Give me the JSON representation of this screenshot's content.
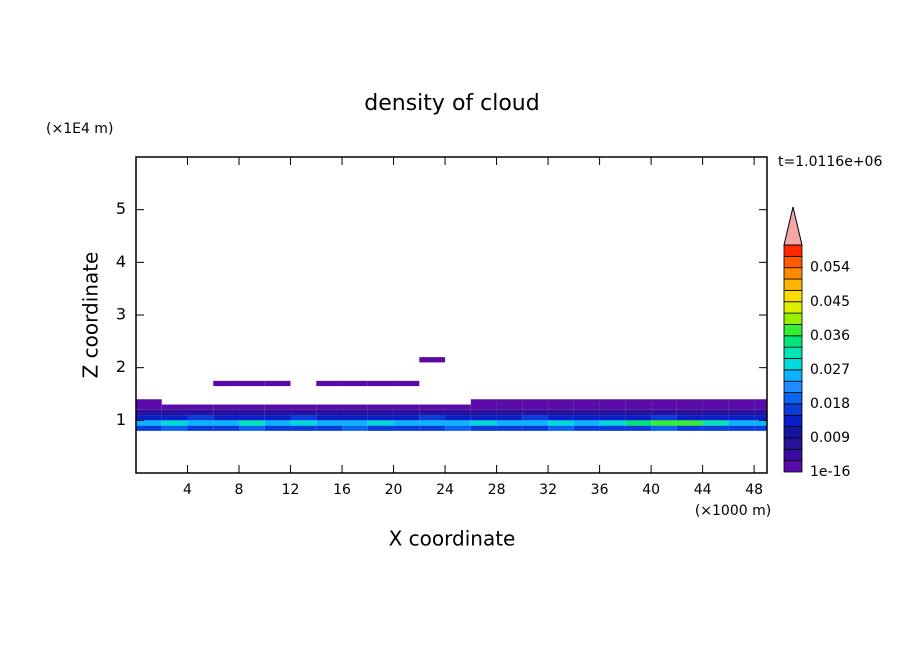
{
  "chart_data": {
    "type": "contour",
    "title": "density of cloud",
    "x_label": "X coordinate",
    "y_label": "Z coordinate",
    "x_unit": "(×1000 m)",
    "y_unit": "(×1E4 m)",
    "time_label": "t=1.0116e+06",
    "xlim": [
      0,
      49
    ],
    "ylim": [
      0,
      6
    ],
    "xticks": [
      4,
      8,
      12,
      16,
      20,
      24,
      28,
      32,
      36,
      40,
      44,
      48
    ],
    "yticks": [
      1,
      2,
      3,
      4,
      5
    ],
    "x": [
      1,
      3,
      5,
      7,
      9,
      11,
      13,
      15,
      17,
      19,
      21,
      23,
      25,
      27,
      29,
      31,
      33,
      35,
      37,
      39,
      41,
      43,
      45,
      47,
      49
    ],
    "y": [
      0.85,
      0.95,
      1.05,
      1.15,
      1.25,
      1.35,
      1.7,
      2.15
    ],
    "z": [
      [
        0.015,
        0.018,
        0.015,
        0.015,
        0.018,
        0.015,
        0.015,
        0.015,
        0.018,
        0.015,
        0.015,
        0.015,
        0.018,
        0.015,
        0.015,
        0.015,
        0.018,
        0.015,
        0.015,
        0.015,
        0.018,
        0.015,
        0.015,
        0.015,
        0.015
      ],
      [
        0.024,
        0.027,
        0.024,
        0.024,
        0.03,
        0.024,
        0.027,
        0.024,
        0.024,
        0.027,
        0.024,
        0.024,
        0.024,
        0.027,
        0.024,
        0.024,
        0.027,
        0.024,
        0.027,
        0.033,
        0.036,
        0.036,
        0.03,
        0.024,
        0.024
      ],
      [
        0.012,
        0.012,
        0.015,
        0.012,
        0.012,
        0.012,
        0.015,
        0.012,
        0.012,
        0.012,
        0.012,
        0.015,
        0.012,
        0.012,
        0.012,
        0.015,
        0.012,
        0.012,
        0.012,
        0.012,
        0.015,
        0.012,
        0.012,
        0.012,
        0.012
      ],
      [
        0.006,
        0.006,
        0.006,
        0.006,
        0.006,
        0.006,
        0.006,
        0.006,
        0.006,
        0.006,
        0.006,
        0.006,
        0.006,
        0.006,
        0.006,
        0.006,
        0.006,
        0.006,
        0.006,
        0.006,
        0.006,
        0.006,
        0.006,
        0.006,
        0.006
      ],
      [
        0.002,
        0.002,
        0.002,
        0.002,
        0.002,
        0.002,
        0.002,
        0.002,
        0.002,
        0.002,
        0.002,
        0.002,
        0.002,
        0.002,
        0.002,
        0.002,
        0.002,
        0.002,
        0.002,
        0.002,
        0.002,
        0.002,
        0.002,
        0.002,
        0.002
      ],
      [
        0.001,
        null,
        null,
        null,
        null,
        null,
        null,
        null,
        null,
        null,
        null,
        null,
        null,
        0.001,
        0.001,
        0.001,
        0.001,
        0.001,
        0.001,
        0.001,
        0.001,
        0.001,
        0.001,
        0.001,
        0.001
      ],
      [
        null,
        null,
        null,
        0.001,
        0.001,
        0.001,
        null,
        0.001,
        0.001,
        0.001,
        0.001,
        null,
        null,
        null,
        null,
        null,
        null,
        null,
        null,
        null,
        null,
        null,
        null,
        null,
        null
      ],
      [
        null,
        null,
        null,
        null,
        null,
        null,
        null,
        null,
        null,
        null,
        null,
        0.001,
        null,
        null,
        null,
        null,
        null,
        null,
        null,
        null,
        null,
        null,
        null,
        null,
        null
      ]
    ],
    "levels": [
      1e-16,
      0.003,
      0.006,
      0.009,
      0.012,
      0.015,
      0.018,
      0.021,
      0.024,
      0.027,
      0.03,
      0.033,
      0.036,
      0.039,
      0.042,
      0.045,
      0.048,
      0.051,
      0.054,
      0.057,
      0.06
    ],
    "colors": [
      "#5a0aa8",
      "#3c0a9c",
      "#28129a",
      "#1414a0",
      "#0a1ec8",
      "#0a3cdc",
      "#0a64f0",
      "#1e8cff",
      "#0ab4ff",
      "#00dcdc",
      "#00e6b4",
      "#00e678",
      "#32f032",
      "#96f000",
      "#dcf000",
      "#ffdc00",
      "#ffb400",
      "#ff8c00",
      "#ff5a00",
      "#ff2800"
    ],
    "extend_color": "#f4a6a6",
    "cbar_ticks": [
      1e-16,
      0.009,
      0.018,
      0.027,
      0.036,
      0.045,
      0.054
    ]
  }
}
